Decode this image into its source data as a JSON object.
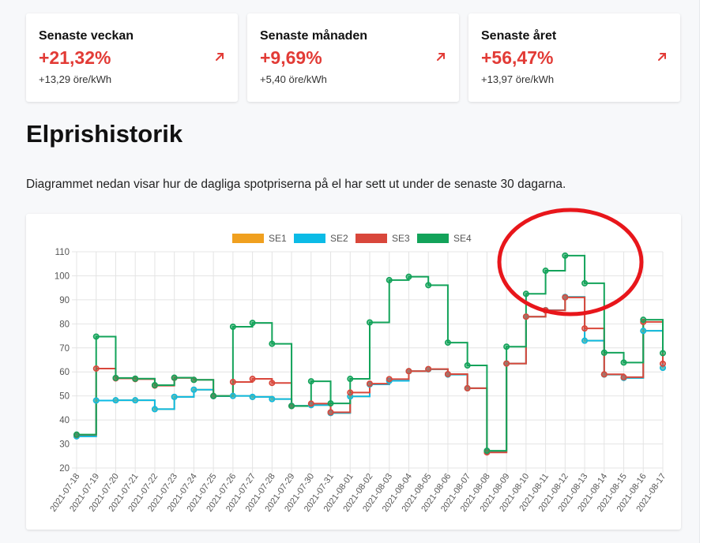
{
  "cards": [
    {
      "title": "Senaste veckan",
      "value": "+21,32%",
      "sub": "+13,29 öre/kWh",
      "arrow_icon": "arrow-up-right-icon"
    },
    {
      "title": "Senaste månaden",
      "value": "+9,69%",
      "sub": "+5,40 öre/kWh",
      "arrow_icon": "arrow-up-right-icon"
    },
    {
      "title": "Senaste året",
      "value": "+56,47%",
      "sub": "+13,97 öre/kWh",
      "arrow_icon": "arrow-up-right-icon"
    }
  ],
  "colors": {
    "accent_red": "#e23b36",
    "annotation_circle": "#e8161b"
  },
  "section": {
    "title": "Elprishistorik",
    "description": "Diagrammet nedan visar hur de dagliga spotpriserna på el har sett ut under de senaste 30 dagarna."
  },
  "chart_data": {
    "type": "line",
    "step": true,
    "title": "",
    "xlabel": "",
    "ylabel": "",
    "ylim": [
      20,
      110
    ],
    "yticks": [
      20,
      30,
      40,
      50,
      60,
      70,
      80,
      90,
      100,
      110
    ],
    "grid": true,
    "legend_position": "top-center",
    "categories": [
      "2021-07-18",
      "2021-07-19",
      "2021-07-20",
      "2021-07-21",
      "2021-07-22",
      "2021-07-23",
      "2021-07-24",
      "2021-07-25",
      "2021-07-26",
      "2021-07-27",
      "2021-07-28",
      "2021-07-29",
      "2021-07-30",
      "2021-07-31",
      "2021-08-01",
      "2021-08-02",
      "2021-08-03",
      "2021-08-04",
      "2021-08-05",
      "2021-08-06",
      "2021-08-07",
      "2021-08-08",
      "2021-08-09",
      "2021-08-10",
      "2021-08-11",
      "2021-08-12",
      "2021-08-13",
      "2021-08-14",
      "2021-08-15",
      "2021-08-16",
      "2021-08-17"
    ],
    "series": [
      {
        "name": "SE1",
        "color": "#f0a01f",
        "values": [
          33.2,
          48.1,
          48.2,
          48.2,
          44.5,
          49.6,
          52.6,
          49.9,
          50.0,
          49.6,
          48.7,
          45.9,
          46.2,
          42.9,
          49.8,
          54.8,
          56.3,
          60.3,
          61.1,
          58.9,
          53.2,
          26.7,
          63.5,
          83.0,
          85.7,
          91.2,
          73.0,
          58.9,
          57.5,
          77.1,
          61.7
        ]
      },
      {
        "name": "SE2",
        "color": "#0bbbe6",
        "values": [
          33.2,
          48.1,
          48.2,
          48.2,
          44.5,
          49.6,
          52.6,
          49.9,
          50.0,
          49.6,
          48.7,
          45.9,
          46.2,
          42.9,
          49.8,
          54.8,
          56.3,
          60.3,
          61.1,
          58.9,
          53.2,
          26.7,
          63.5,
          83.0,
          85.7,
          91.2,
          73.0,
          58.9,
          57.5,
          77.1,
          61.7
        ]
      },
      {
        "name": "SE3",
        "color": "#d9473b",
        "values": [
          33.8,
          61.4,
          57.3,
          57.0,
          54.3,
          57.5,
          56.7,
          50.0,
          55.8,
          57.1,
          55.4,
          45.8,
          46.8,
          43.2,
          51.4,
          55.1,
          57.0,
          60.3,
          61.2,
          59.1,
          53.2,
          26.5,
          63.5,
          83.0,
          85.6,
          91.0,
          78.1,
          59.0,
          57.8,
          80.8,
          63.4
        ]
      },
      {
        "name": "SE4",
        "color": "#13a35a",
        "values": [
          33.9,
          74.7,
          57.5,
          57.2,
          54.5,
          57.6,
          56.7,
          50.0,
          78.8,
          80.4,
          71.7,
          45.8,
          56.1,
          46.9,
          57.1,
          80.6,
          98.2,
          99.6,
          96.1,
          72.2,
          62.7,
          27.2,
          70.5,
          92.5,
          102.1,
          108.4,
          96.9,
          68.0,
          63.9,
          81.7,
          67.8
        ]
      }
    ]
  }
}
